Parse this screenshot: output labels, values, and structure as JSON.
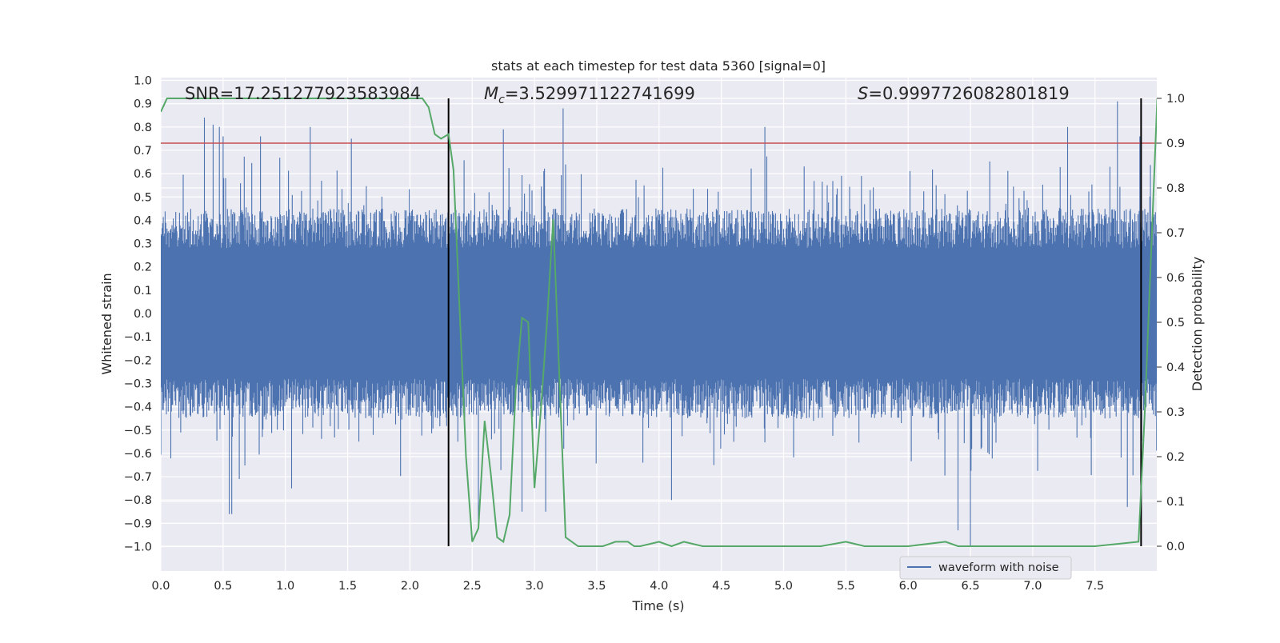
{
  "chart_data": {
    "type": "line",
    "title": "stats at each timestep for test data 5360 [signal=0]",
    "xlabel": "Time (s)",
    "ylabel": "Whitened strain",
    "y2label": "Detection probability",
    "xlim": [
      0.0,
      8.0
    ],
    "ylim": [
      -1.09,
      1.0
    ],
    "y2lim": [
      -0.045,
      1.045
    ],
    "x_ticks": [
      "0.0",
      "0.5",
      "1.0",
      "1.5",
      "2.0",
      "2.5",
      "3.0",
      "3.5",
      "4.0",
      "4.5",
      "5.0",
      "5.5",
      "6.0",
      "6.5",
      "7.0",
      "7.5"
    ],
    "y_ticks": [
      "1.0",
      "0.9",
      "0.8",
      "0.7",
      "0.6",
      "0.5",
      "0.4",
      "0.3",
      "0.2",
      "0.1",
      "0.0",
      "−0.1",
      "−0.2",
      "−0.3",
      "−0.4",
      "−0.5",
      "−0.6",
      "−0.7",
      "−0.8",
      "−0.9",
      "−1.0"
    ],
    "y2_ticks": [
      "0.0",
      "0.1",
      "0.2",
      "0.3",
      "0.4",
      "0.5",
      "0.6",
      "0.7",
      "0.8",
      "0.9",
      "1.0"
    ],
    "grid": true,
    "legend_placement": "lower-right",
    "annotations": {
      "snr": "SNR=17.251277923583984",
      "mc": "=3.529971122741699",
      "s": "=0.9997726082801819"
    },
    "vertical_markers": [
      2.31,
      7.87
    ],
    "threshold_y2": 0.9,
    "series": [
      {
        "name": "waveform with noise",
        "axis": "left",
        "color": "#4c72b0",
        "description_of_envelope": "dense noisy strain, typical band about ±0.3 to ±0.45 with spikes",
        "peaks_up": [
          [
            0.35,
            0.84
          ],
          [
            0.42,
            0.81
          ],
          [
            0.47,
            0.8
          ],
          [
            0.5,
            0.76
          ],
          [
            0.8,
            0.76
          ],
          [
            1.2,
            0.8
          ],
          [
            1.53,
            0.75
          ],
          [
            2.75,
            0.79
          ],
          [
            3.23,
            0.88
          ],
          [
            4.85,
            0.8
          ],
          [
            7.28,
            0.8
          ],
          [
            7.68,
            0.91
          ],
          [
            7.86,
            0.76
          ]
        ],
        "peaks_down": [
          [
            0.55,
            -0.86
          ],
          [
            0.57,
            -0.86
          ],
          [
            0.63,
            -0.71
          ],
          [
            1.05,
            -0.75
          ],
          [
            2.55,
            -0.9
          ],
          [
            2.9,
            -0.85
          ],
          [
            3.09,
            -0.85
          ],
          [
            4.1,
            -0.8
          ],
          [
            6.4,
            -0.93
          ],
          [
            6.5,
            -1.0
          ],
          [
            7.76,
            -0.83
          ]
        ]
      },
      {
        "name": "",
        "axis": "right",
        "color": "#55a868",
        "x": [
          0.0,
          0.05,
          0.1,
          0.5,
          1.0,
          1.5,
          2.0,
          2.1,
          2.15,
          2.2,
          2.25,
          2.31,
          2.35,
          2.45,
          2.5,
          2.55,
          2.6,
          2.65,
          2.7,
          2.75,
          2.8,
          2.85,
          2.9,
          2.95,
          3.0,
          3.05,
          3.1,
          3.15,
          3.2,
          3.25,
          3.3,
          3.35,
          3.45,
          3.55,
          3.65,
          3.75,
          3.8,
          3.85,
          4.0,
          4.1,
          4.2,
          4.35,
          4.5,
          4.8,
          5.0,
          5.3,
          5.5,
          5.65,
          5.75,
          6.0,
          6.3,
          6.4,
          7.0,
          7.5,
          7.85,
          7.9,
          7.95,
          8.0
        ],
        "y": [
          0.97,
          1.0,
          1.0,
          1.0,
          1.0,
          1.0,
          1.0,
          1.0,
          0.98,
          0.92,
          0.91,
          0.92,
          0.84,
          0.2,
          0.01,
          0.04,
          0.28,
          0.16,
          0.02,
          0.01,
          0.07,
          0.35,
          0.51,
          0.5,
          0.13,
          0.3,
          0.5,
          0.73,
          0.38,
          0.02,
          0.01,
          0.0,
          0.0,
          0.0,
          0.01,
          0.01,
          0.0,
          0.0,
          0.01,
          0.0,
          0.01,
          0.0,
          0.0,
          0.0,
          0.0,
          0.0,
          0.01,
          0.0,
          0.0,
          0.0,
          0.01,
          0.0,
          0.0,
          0.0,
          0.01,
          0.3,
          0.65,
          1.0
        ]
      }
    ]
  }
}
